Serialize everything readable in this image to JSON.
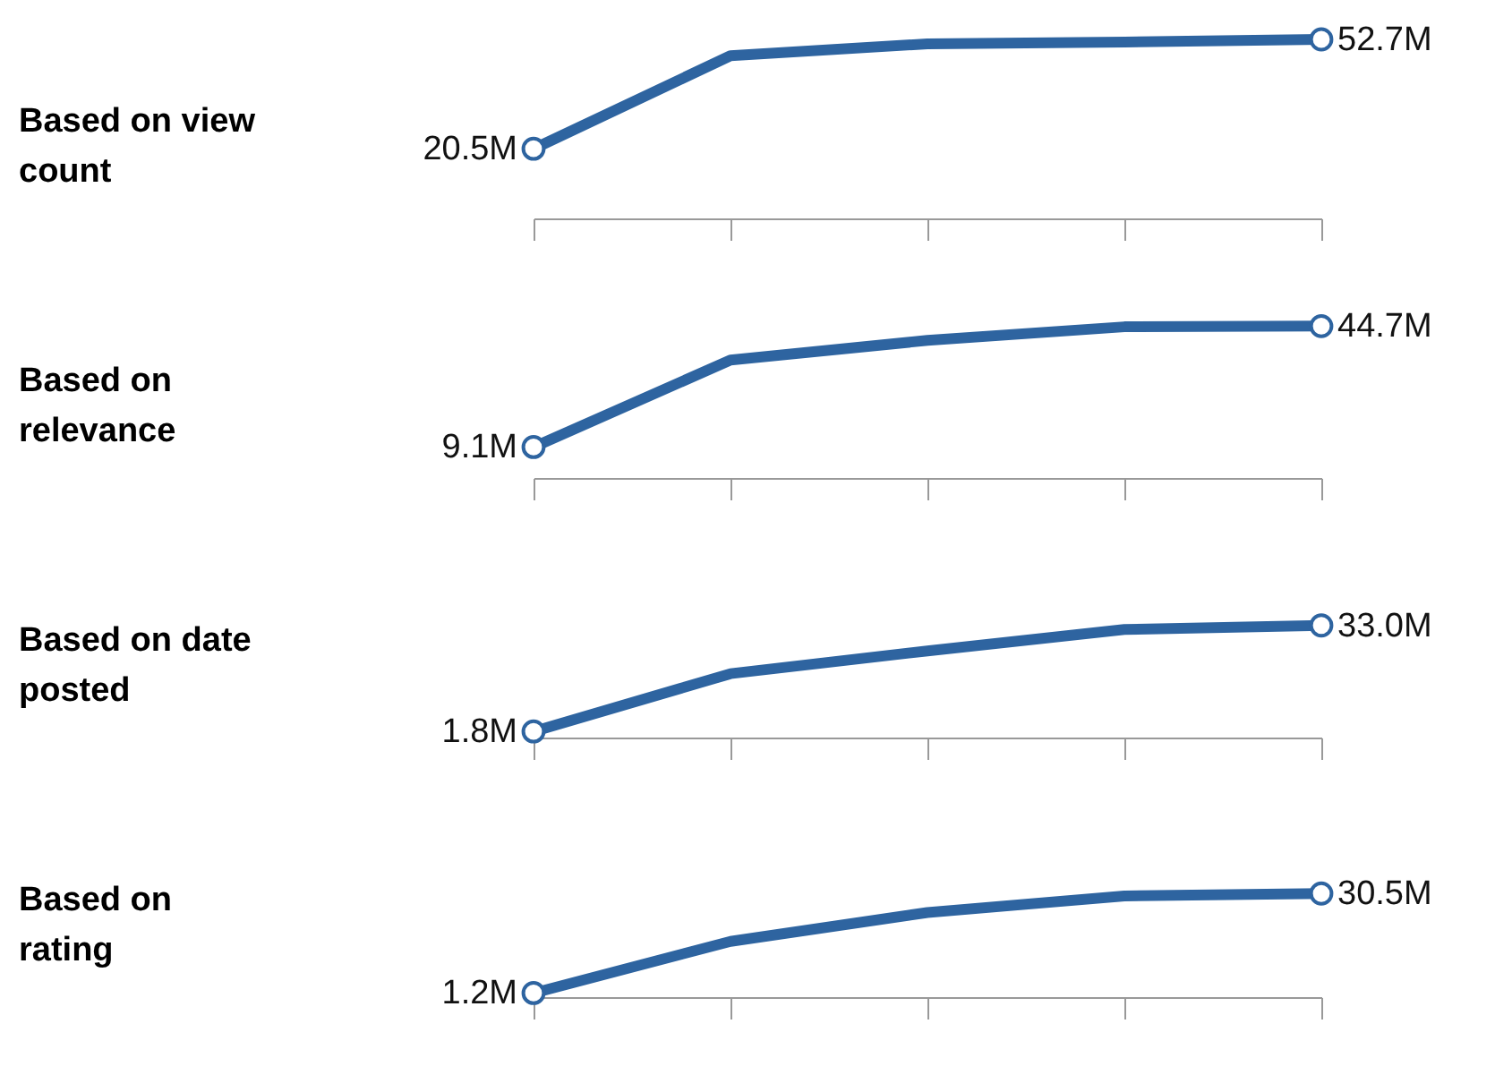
{
  "chart_data": [
    {
      "type": "line",
      "ylabel": "Based on view count",
      "categories": [
        null,
        null,
        null,
        null,
        null
      ],
      "series": [
        {
          "color": "#2e64a0",
          "values": [
            20.5,
            47.9,
            51.4,
            51.9,
            52.7
          ],
          "value_labels": [
            "20.5M",
            null,
            null,
            null,
            "52.7M"
          ]
        }
      ],
      "line_style": "solid",
      "grid": false
    },
    {
      "type": "line",
      "ylabel": "Based on relevance",
      "categories": [
        null,
        null,
        null,
        null,
        null
      ],
      "series": [
        {
          "color": "#2e64a0",
          "values": [
            9.1,
            34.7,
            40.5,
            44.5,
            44.7
          ],
          "value_labels": [
            "9.1M",
            null,
            null,
            null,
            "44.7M"
          ]
        }
      ],
      "line_style": "solid",
      "grid": false
    },
    {
      "type": "line",
      "ylabel": "Based on date posted",
      "categories": [
        null,
        null,
        null,
        null,
        null
      ],
      "series": [
        {
          "color": "#2e64a0",
          "values": [
            1.8,
            18.8,
            25.5,
            31.8,
            33.0
          ],
          "value_labels": [
            "1.8M",
            null,
            null,
            null,
            "33.0M"
          ]
        }
      ],
      "line_style": "solid",
      "grid": false
    },
    {
      "type": "line",
      "ylabel": "Based on rating",
      "categories": [
        null,
        null,
        null,
        null,
        null
      ],
      "series": [
        {
          "color": "#2e64a0",
          "values": [
            1.2,
            16.4,
            24.9,
            29.8,
            30.5
          ],
          "value_labels": [
            "1.2M",
            null,
            null,
            null,
            "30.5M"
          ]
        }
      ],
      "line_style": "solid",
      "grid": false
    }
  ]
}
